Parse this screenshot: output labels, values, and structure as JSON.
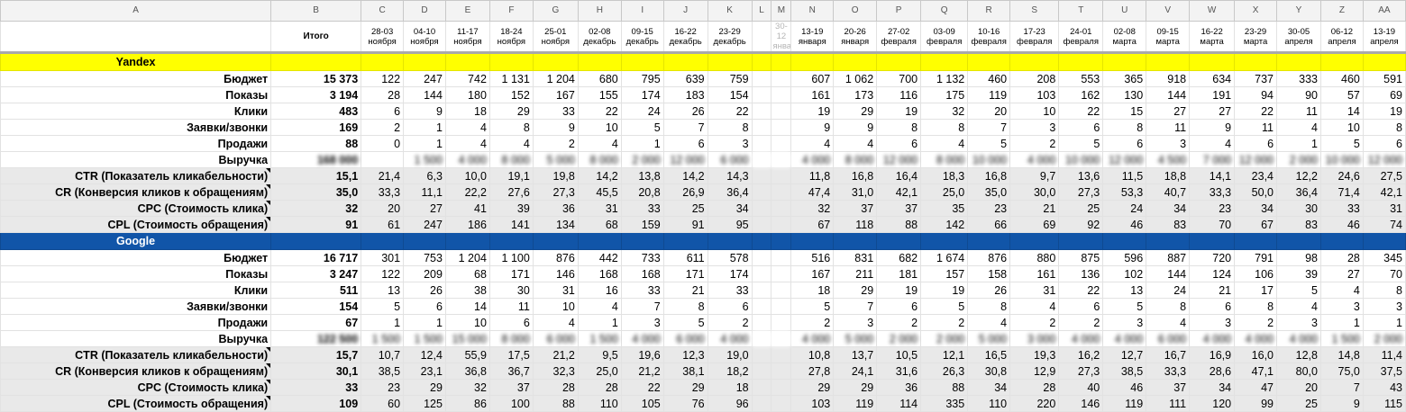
{
  "columns": {
    "letters": [
      "A",
      "B",
      "C",
      "D",
      "E",
      "F",
      "G",
      "H",
      "I",
      "J",
      "K",
      "L",
      "M",
      "N",
      "O",
      "P",
      "Q",
      "R",
      "S",
      "T",
      "U",
      "V",
      "W",
      "X",
      "Y",
      "Z",
      "AA"
    ],
    "total_header": "Итого",
    "periods": [
      [
        "28-03",
        "ноября"
      ],
      [
        "04-10",
        "ноября"
      ],
      [
        "11-17",
        "ноября"
      ],
      [
        "18-24",
        "ноября"
      ],
      [
        "25-01",
        "ноября"
      ],
      [
        "02-08",
        "декабрь"
      ],
      [
        "09-15",
        "декабрь"
      ],
      [
        "16-22",
        "декабрь"
      ],
      [
        "23-29",
        "декабрь"
      ],
      [
        "",
        ""
      ],
      [
        "30-12",
        "января"
      ],
      [
        "13-19",
        "января"
      ],
      [
        "20-26",
        "января"
      ],
      [
        "27-02",
        "февраля"
      ],
      [
        "03-09",
        "февраля"
      ],
      [
        "10-16",
        "февраля"
      ],
      [
        "17-23",
        "февраля"
      ],
      [
        "24-01",
        "февраля"
      ],
      [
        "02-08",
        "марта"
      ],
      [
        "09-15",
        "марта"
      ],
      [
        "16-22",
        "марта"
      ],
      [
        "23-29",
        "марта"
      ],
      [
        "30-05",
        "апреля"
      ],
      [
        "06-12",
        "апреля"
      ],
      [
        "13-19",
        "апреля"
      ]
    ]
  },
  "sections": [
    {
      "name": "Yandex",
      "rows": [
        {
          "label": "Бюджет",
          "total": "15 373",
          "gray": false,
          "values": [
            "122",
            "247",
            "742",
            "1 131",
            "1 204",
            "680",
            "795",
            "639",
            "759",
            "",
            "",
            "607",
            "1 062",
            "700",
            "1 132",
            "460",
            "208",
            "553",
            "365",
            "918",
            "634",
            "737",
            "333",
            "460",
            "591"
          ]
        },
        {
          "label": "Показы",
          "total": "3 194",
          "gray": false,
          "values": [
            "28",
            "144",
            "180",
            "152",
            "167",
            "155",
            "174",
            "183",
            "154",
            "",
            "",
            "161",
            "173",
            "116",
            "175",
            "119",
            "103",
            "162",
            "130",
            "144",
            "191",
            "94",
            "90",
            "57",
            "69"
          ]
        },
        {
          "label": "Клики",
          "total": "483",
          "gray": false,
          "values": [
            "6",
            "9",
            "18",
            "29",
            "33",
            "22",
            "24",
            "26",
            "22",
            "",
            "",
            "19",
            "29",
            "19",
            "32",
            "20",
            "10",
            "22",
            "15",
            "27",
            "27",
            "22",
            "11",
            "14",
            "19"
          ]
        },
        {
          "label": "Заявки/звонки",
          "total": "169",
          "gray": false,
          "values": [
            "2",
            "1",
            "4",
            "8",
            "9",
            "10",
            "5",
            "7",
            "8",
            "",
            "",
            "9",
            "9",
            "8",
            "8",
            "7",
            "3",
            "6",
            "8",
            "11",
            "9",
            "11",
            "4",
            "10",
            "8"
          ]
        },
        {
          "label": "Продажи",
          "total": "88",
          "gray": false,
          "values": [
            "0",
            "1",
            "4",
            "4",
            "2",
            "4",
            "1",
            "6",
            "3",
            "",
            "",
            "4",
            "4",
            "6",
            "4",
            "5",
            "2",
            "5",
            "6",
            "3",
            "4",
            "6",
            "1",
            "5",
            "6"
          ]
        },
        {
          "label": "Выручка",
          "total": "168 000",
          "gray": false,
          "blur": true,
          "values": [
            "",
            "1 500",
            "4 000",
            "8 000",
            "5 000",
            "8 000",
            "2 000",
            "12 000",
            "6 000",
            "",
            "",
            "4 000",
            "8 000",
            "12 000",
            "8 000",
            "10 000",
            "4 000",
            "10 000",
            "12 000",
            "4 500",
            "7 000",
            "12 000",
            "2 000",
            "10 000",
            "12 000"
          ]
        },
        {
          "label": "CTR (Показатель кликабельности)",
          "total": "15,1",
          "gray": true,
          "values": [
            "21,4",
            "6,3",
            "10,0",
            "19,1",
            "19,8",
            "14,2",
            "13,8",
            "14,2",
            "14,3",
            "",
            "",
            "11,8",
            "16,8",
            "16,4",
            "18,3",
            "16,8",
            "9,7",
            "13,6",
            "11,5",
            "18,8",
            "14,1",
            "23,4",
            "12,2",
            "24,6",
            "27,5"
          ]
        },
        {
          "label": "CR (Конверсия кликов к обращениям)",
          "total": "35,0",
          "gray": true,
          "values": [
            "33,3",
            "11,1",
            "22,2",
            "27,6",
            "27,3",
            "45,5",
            "20,8",
            "26,9",
            "36,4",
            "",
            "",
            "47,4",
            "31,0",
            "42,1",
            "25,0",
            "35,0",
            "30,0",
            "27,3",
            "53,3",
            "40,7",
            "33,3",
            "50,0",
            "36,4",
            "71,4",
            "42,1"
          ]
        },
        {
          "label": "CPC (Стоимость клика)",
          "total": "32",
          "gray": true,
          "values": [
            "20",
            "27",
            "41",
            "39",
            "36",
            "31",
            "33",
            "25",
            "34",
            "",
            "",
            "32",
            "37",
            "37",
            "35",
            "23",
            "21",
            "25",
            "24",
            "34",
            "23",
            "34",
            "30",
            "33",
            "31"
          ]
        },
        {
          "label": "CPL (Стоимость обращения)",
          "total": "91",
          "gray": true,
          "values": [
            "61",
            "247",
            "186",
            "141",
            "134",
            "68",
            "159",
            "91",
            "95",
            "",
            "",
            "67",
            "118",
            "88",
            "142",
            "66",
            "69",
            "92",
            "46",
            "83",
            "70",
            "67",
            "83",
            "46",
            "74"
          ]
        }
      ]
    },
    {
      "name": "Google",
      "rows": [
        {
          "label": "Бюджет",
          "total": "16 717",
          "gray": false,
          "values": [
            "301",
            "753",
            "1 204",
            "1 100",
            "876",
            "442",
            "733",
            "611",
            "578",
            "",
            "",
            "516",
            "831",
            "682",
            "1 674",
            "876",
            "880",
            "875",
            "596",
            "887",
            "720",
            "791",
            "98",
            "28",
            "345"
          ]
        },
        {
          "label": "Показы",
          "total": "3 247",
          "gray": false,
          "values": [
            "122",
            "209",
            "68",
            "171",
            "146",
            "168",
            "168",
            "171",
            "174",
            "",
            "",
            "167",
            "211",
            "181",
            "157",
            "158",
            "161",
            "136",
            "102",
            "144",
            "124",
            "106",
            "39",
            "27",
            "70"
          ]
        },
        {
          "label": "Клики",
          "total": "511",
          "gray": false,
          "values": [
            "13",
            "26",
            "38",
            "30",
            "31",
            "16",
            "33",
            "21",
            "33",
            "",
            "",
            "18",
            "29",
            "19",
            "19",
            "26",
            "31",
            "22",
            "13",
            "24",
            "21",
            "17",
            "5",
            "4",
            "8"
          ]
        },
        {
          "label": "Заявки/звонки",
          "total": "154",
          "gray": false,
          "values": [
            "5",
            "6",
            "14",
            "11",
            "10",
            "4",
            "7",
            "8",
            "6",
            "",
            "",
            "5",
            "7",
            "6",
            "5",
            "8",
            "4",
            "6",
            "5",
            "8",
            "6",
            "8",
            "4",
            "3",
            "3"
          ]
        },
        {
          "label": "Продажи",
          "total": "67",
          "gray": false,
          "values": [
            "1",
            "1",
            "10",
            "6",
            "4",
            "1",
            "3",
            "5",
            "2",
            "",
            "",
            "2",
            "3",
            "2",
            "2",
            "4",
            "2",
            "2",
            "3",
            "4",
            "3",
            "2",
            "3",
            "1",
            "1"
          ]
        },
        {
          "label": "Выручка",
          "total": "122 500",
          "gray": false,
          "blur": true,
          "values": [
            "1 500",
            "1 500",
            "15 000",
            "8 000",
            "6 000",
            "1 500",
            "4 000",
            "6 000",
            "4 000",
            "",
            "",
            "4 000",
            "5 000",
            "2 000",
            "2 000",
            "5 000",
            "3 000",
            "4 000",
            "4 000",
            "6 000",
            "4 000",
            "4 000",
            "4 000",
            "1 500",
            "2 000"
          ]
        },
        {
          "label": "CTR (Показатель кликабельности)",
          "total": "15,7",
          "gray": true,
          "values": [
            "10,7",
            "12,4",
            "55,9",
            "17,5",
            "21,2",
            "9,5",
            "19,6",
            "12,3",
            "19,0",
            "",
            "",
            "10,8",
            "13,7",
            "10,5",
            "12,1",
            "16,5",
            "19,3",
            "16,2",
            "12,7",
            "16,7",
            "16,9",
            "16,0",
            "12,8",
            "14,8",
            "11,4"
          ]
        },
        {
          "label": "CR (Конверсия кликов к обращениям)",
          "total": "30,1",
          "gray": true,
          "values": [
            "38,5",
            "23,1",
            "36,8",
            "36,7",
            "32,3",
            "25,0",
            "21,2",
            "38,1",
            "18,2",
            "",
            "",
            "27,8",
            "24,1",
            "31,6",
            "26,3",
            "30,8",
            "12,9",
            "27,3",
            "38,5",
            "33,3",
            "28,6",
            "47,1",
            "80,0",
            "75,0",
            "37,5"
          ]
        },
        {
          "label": "CPC (Стоимость клика)",
          "total": "33",
          "gray": true,
          "values": [
            "23",
            "29",
            "32",
            "37",
            "28",
            "28",
            "22",
            "29",
            "18",
            "",
            "",
            "29",
            "29",
            "36",
            "88",
            "34",
            "28",
            "40",
            "46",
            "37",
            "34",
            "47",
            "20",
            "7",
            "43"
          ]
        },
        {
          "label": "CPL (Стоимость обращения)",
          "total": "109",
          "gray": true,
          "values": [
            "60",
            "125",
            "86",
            "100",
            "88",
            "110",
            "105",
            "76",
            "96",
            "",
            "",
            "103",
            "119",
            "114",
            "335",
            "110",
            "220",
            "146",
            "119",
            "111",
            "120",
            "99",
            "25",
            "9",
            "115"
          ]
        }
      ]
    }
  ]
}
